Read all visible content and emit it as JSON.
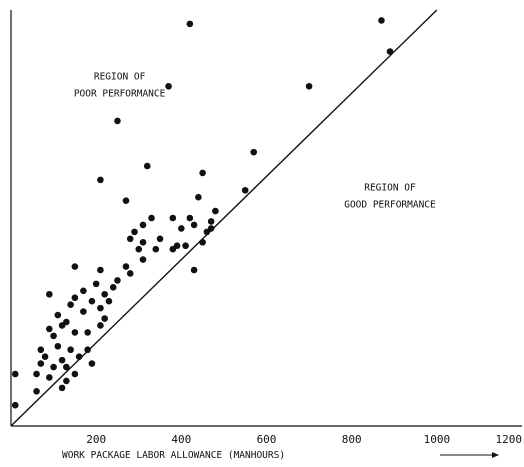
{
  "chart_data": {
    "type": "scatter",
    "title": "",
    "xlabel": "WORK PACKAGE LABOR ALLOWANCE   (MANHOURS)",
    "ylabel": "",
    "xlim": [
      0,
      1200
    ],
    "ylim": [
      0,
      1200
    ],
    "x_ticks": [
      200,
      400,
      600,
      800,
      1000,
      1200
    ],
    "grid": false,
    "annotations": [
      {
        "text": "REGION OF",
        "x": 255,
        "y": 1000
      },
      {
        "text": "POOR PERFORMANCE",
        "x": 255,
        "y": 950
      },
      {
        "text": "REGION OF",
        "x": 890,
        "y": 680
      },
      {
        "text": "GOOD PERFORMANCE",
        "x": 890,
        "y": 630
      }
    ],
    "reference_line": {
      "x": [
        0,
        1000
      ],
      "y": [
        0,
        1200
      ]
    },
    "points": [
      {
        "x": 420,
        "y": 1160
      },
      {
        "x": 870,
        "y": 1170
      },
      {
        "x": 890,
        "y": 1080
      },
      {
        "x": 370,
        "y": 980
      },
      {
        "x": 700,
        "y": 980
      },
      {
        "x": 250,
        "y": 880
      },
      {
        "x": 570,
        "y": 790
      },
      {
        "x": 320,
        "y": 750
      },
      {
        "x": 450,
        "y": 730
      },
      {
        "x": 210,
        "y": 710
      },
      {
        "x": 550,
        "y": 680
      },
      {
        "x": 270,
        "y": 650
      },
      {
        "x": 440,
        "y": 660
      },
      {
        "x": 380,
        "y": 600
      },
      {
        "x": 420,
        "y": 600
      },
      {
        "x": 480,
        "y": 620
      },
      {
        "x": 310,
        "y": 580
      },
      {
        "x": 290,
        "y": 560
      },
      {
        "x": 330,
        "y": 600
      },
      {
        "x": 400,
        "y": 570
      },
      {
        "x": 430,
        "y": 580
      },
      {
        "x": 470,
        "y": 590
      },
      {
        "x": 280,
        "y": 540
      },
      {
        "x": 310,
        "y": 530
      },
      {
        "x": 350,
        "y": 540
      },
      {
        "x": 390,
        "y": 520
      },
      {
        "x": 410,
        "y": 520
      },
      {
        "x": 450,
        "y": 530
      },
      {
        "x": 460,
        "y": 560
      },
      {
        "x": 470,
        "y": 570
      },
      {
        "x": 300,
        "y": 510
      },
      {
        "x": 340,
        "y": 510
      },
      {
        "x": 380,
        "y": 510
      },
      {
        "x": 150,
        "y": 460
      },
      {
        "x": 210,
        "y": 450
      },
      {
        "x": 270,
        "y": 460
      },
      {
        "x": 430,
        "y": 450
      },
      {
        "x": 310,
        "y": 480
      },
      {
        "x": 250,
        "y": 420
      },
      {
        "x": 280,
        "y": 440
      },
      {
        "x": 90,
        "y": 380
      },
      {
        "x": 170,
        "y": 390
      },
      {
        "x": 200,
        "y": 410
      },
      {
        "x": 220,
        "y": 380
      },
      {
        "x": 240,
        "y": 400
      },
      {
        "x": 230,
        "y": 360
      },
      {
        "x": 150,
        "y": 370
      },
      {
        "x": 140,
        "y": 350
      },
      {
        "x": 190,
        "y": 360
      },
      {
        "x": 210,
        "y": 340
      },
      {
        "x": 170,
        "y": 330
      },
      {
        "x": 110,
        "y": 320
      },
      {
        "x": 130,
        "y": 300
      },
      {
        "x": 220,
        "y": 310
      },
      {
        "x": 210,
        "y": 290
      },
      {
        "x": 90,
        "y": 280
      },
      {
        "x": 120,
        "y": 290
      },
      {
        "x": 150,
        "y": 270
      },
      {
        "x": 100,
        "y": 260
      },
      {
        "x": 180,
        "y": 270
      },
      {
        "x": 70,
        "y": 220
      },
      {
        "x": 110,
        "y": 230
      },
      {
        "x": 140,
        "y": 220
      },
      {
        "x": 80,
        "y": 200
      },
      {
        "x": 120,
        "y": 190
      },
      {
        "x": 160,
        "y": 200
      },
      {
        "x": 180,
        "y": 220
      },
      {
        "x": 70,
        "y": 180
      },
      {
        "x": 100,
        "y": 170
      },
      {
        "x": 130,
        "y": 170
      },
      {
        "x": 190,
        "y": 180
      },
      {
        "x": 60,
        "y": 150
      },
      {
        "x": 90,
        "y": 140
      },
      {
        "x": 150,
        "y": 150
      },
      {
        "x": 130,
        "y": 130
      },
      {
        "x": 10,
        "y": 150
      },
      {
        "x": 60,
        "y": 100
      },
      {
        "x": 120,
        "y": 110
      },
      {
        "x": 10,
        "y": 60
      }
    ]
  }
}
